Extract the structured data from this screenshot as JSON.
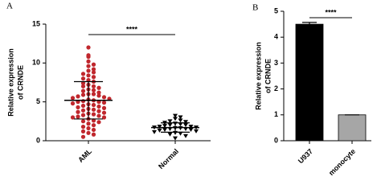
{
  "chart_data": [
    {
      "type": "dot-plot",
      "panel_label": "A",
      "ylabel": [
        "Relative expression",
        "of CRNDE"
      ],
      "categories": [
        "AML",
        "Normal"
      ],
      "groups": [
        {
          "color": "#c0272d",
          "marker": "circle",
          "mean": 5.2,
          "sd": 2.4,
          "values": [
            12.0,
            11.0,
            10.8,
            10.2,
            9.8,
            9.6,
            9.2,
            9.0,
            8.8,
            8.6,
            8.4,
            8.2,
            8.0,
            7.8,
            7.6,
            7.4,
            7.2,
            7.0,
            7.0,
            6.8,
            6.6,
            6.5,
            6.4,
            6.2,
            6.0,
            6.0,
            5.9,
            5.8,
            5.7,
            5.6,
            5.5,
            5.4,
            5.3,
            5.2,
            5.1,
            5.0,
            5.0,
            4.9,
            4.8,
            4.7,
            4.6,
            4.5,
            4.4,
            4.3,
            4.2,
            4.1,
            4.0,
            3.9,
            3.8,
            3.7,
            3.6,
            3.5,
            3.4,
            3.3,
            3.2,
            3.1,
            3.0,
            3.0,
            2.8,
            2.6,
            2.5,
            2.4,
            2.2,
            2.0,
            1.8,
            1.6,
            1.4,
            1.2,
            1.0,
            0.8,
            0.5
          ]
        },
        {
          "color": "#000000",
          "marker": "triangle-down",
          "mean": 1.7,
          "sd": 0.6,
          "values": [
            3.2,
            3.0,
            2.8,
            2.6,
            2.5,
            2.4,
            2.3,
            2.2,
            2.1,
            2.0,
            2.0,
            1.9,
            1.8,
            1.8,
            1.7,
            1.7,
            1.6,
            1.6,
            1.5,
            1.5,
            1.4,
            1.4,
            1.3,
            1.2,
            1.1,
            1.0,
            0.9,
            0.8,
            0.6,
            0.3
          ]
        }
      ],
      "annotation": "****",
      "ylim": [
        0,
        15
      ],
      "yticks": [
        0,
        5,
        10,
        15
      ]
    },
    {
      "type": "bar",
      "panel_label": "B",
      "ylabel": [
        "Relative expression",
        "of CRNDE"
      ],
      "categories": [
        "U937",
        "monocyte"
      ],
      "values": [
        4.5,
        1.0
      ],
      "errors": [
        0.07,
        0.0
      ],
      "colors": [
        "#000000",
        "#a6a6a6"
      ],
      "annotation": "****",
      "ylim": [
        0,
        5
      ],
      "yticks": [
        0,
        1,
        2,
        3,
        4,
        5
      ]
    }
  ]
}
